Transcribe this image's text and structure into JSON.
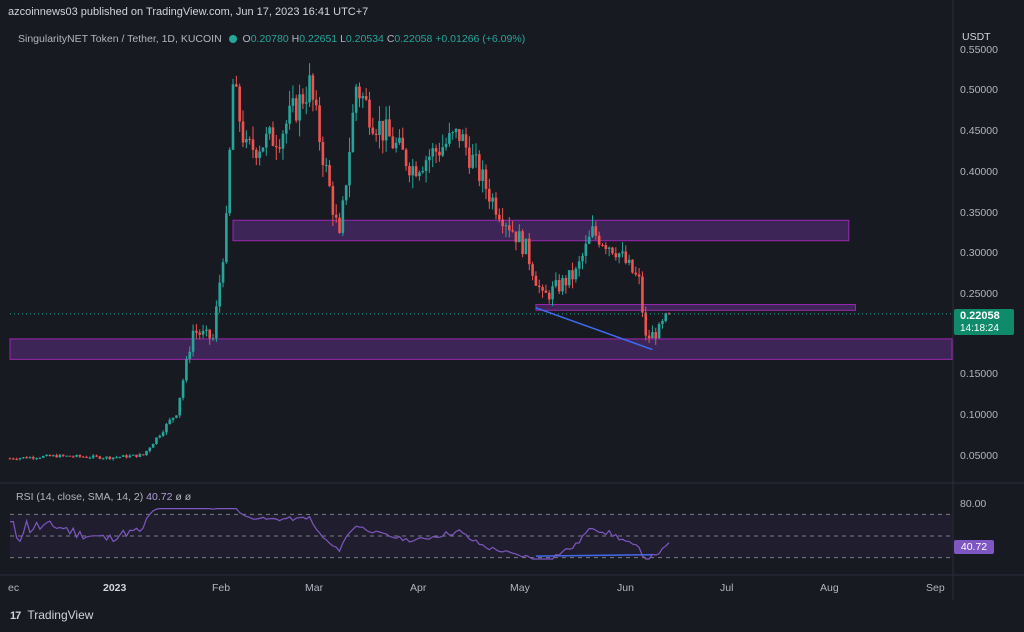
{
  "header": {
    "text": "azcoinnews03 published on TradingView.com, Jun 17, 2023 16:41 UTC+7"
  },
  "symbol": {
    "name": "SingularityNET Token / Tether, 1D, KUCOIN",
    "open_label": "O",
    "open": "0.20780",
    "high_label": "H",
    "high": "0.22651",
    "low_label": "L",
    "low": "0.20534",
    "close_label": "C",
    "close": "0.22058",
    "change": "+0.01266 (+6.09%)"
  },
  "price_axis": {
    "currency": "USDT",
    "ticks": [
      "0.55000",
      "0.50000",
      "0.45000",
      "0.40000",
      "0.35000",
      "0.30000",
      "0.25000",
      "0.15000",
      "0.10000",
      "0.05000"
    ],
    "last_price": "0.22058",
    "countdown": "14:18:24"
  },
  "rsi": {
    "legend": "RSI (14, close, SMA, 14, 2)",
    "legend_value": "40.72",
    "legend_extra_1": "ø",
    "legend_extra_2": "ø",
    "tick_top": "80.00",
    "current": "40.72"
  },
  "time_axis": {
    "labels": [
      "ec",
      "2023",
      "Feb",
      "Mar",
      "Apr",
      "May",
      "Jun",
      "Jul",
      "Aug",
      "Sep"
    ]
  },
  "footer": {
    "logo_text": "17",
    "brand": "TradingView"
  },
  "colors": {
    "bg": "#181a22",
    "up": "#26a69a",
    "down": "#ef5350",
    "zone_fill": "#4a2a6a",
    "zone_stroke": "#9c27b0",
    "rsi_line": "#7e57c2",
    "divergence": "#3d6cf0"
  },
  "chart_data": {
    "type": "candlestick",
    "title": "SingularityNET Token / Tether, 1D, KUCOIN",
    "ylim": [
      0.02,
      0.57
    ],
    "close_series": [
      [
        "2022-12-01",
        0.044
      ],
      [
        "2022-12-15",
        0.047
      ],
      [
        "2022-12-31",
        0.045
      ],
      [
        "2023-01-10",
        0.048
      ],
      [
        "2023-01-20",
        0.1
      ],
      [
        "2023-01-25",
        0.2
      ],
      [
        "2023-01-31",
        0.19
      ],
      [
        "2023-02-04",
        0.33
      ],
      [
        "2023-02-06",
        0.5
      ],
      [
        "2023-02-10",
        0.42
      ],
      [
        "2023-02-20",
        0.44
      ],
      [
        "2023-03-01",
        0.5
      ],
      [
        "2023-03-10",
        0.31
      ],
      [
        "2023-03-15",
        0.5
      ],
      [
        "2023-03-20",
        0.46
      ],
      [
        "2023-04-01",
        0.4
      ],
      [
        "2023-04-15",
        0.44
      ],
      [
        "2023-04-25",
        0.36
      ],
      [
        "2023-05-05",
        0.3
      ],
      [
        "2023-05-10",
        0.24
      ],
      [
        "2023-05-20",
        0.27
      ],
      [
        "2023-05-25",
        0.32
      ],
      [
        "2023-06-01",
        0.3
      ],
      [
        "2023-06-08",
        0.26
      ],
      [
        "2023-06-10",
        0.19
      ],
      [
        "2023-06-14",
        0.2
      ],
      [
        "2023-06-17",
        0.22058
      ]
    ],
    "zones": [
      {
        "from_date": "2023-02-06",
        "to_date": "2023-08-10",
        "low": 0.31,
        "high": 0.335
      },
      {
        "from_date": "2023-05-08",
        "to_date": "2023-08-12",
        "low": 0.225,
        "high": 0.232
      },
      {
        "from_date": "2022-12-01",
        "to_date": "2023-09-10",
        "low": 0.165,
        "high": 0.19
      }
    ],
    "divergence_lines": [
      {
        "panel": "price",
        "from": [
          "2023-05-08",
          0.228
        ],
        "to": [
          "2023-06-12",
          0.177
        ]
      },
      {
        "panel": "rsi",
        "from": [
          "2023-05-08",
          22
        ],
        "to": [
          "2023-06-12",
          24
        ]
      }
    ],
    "rsi_levels": [
      80,
      50,
      20
    ],
    "rsi_current": 40.72
  }
}
